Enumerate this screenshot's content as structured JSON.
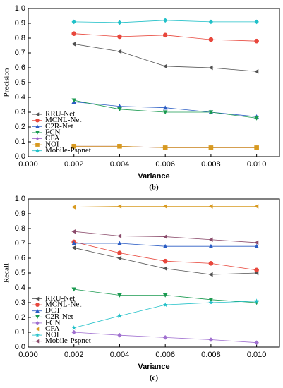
{
  "chart_data": [
    {
      "type": "line",
      "ylabel": "Precision",
      "xlabel": "Variance",
      "caption": "(b)",
      "x": [
        0.002,
        0.004,
        0.006,
        0.008,
        0.01
      ],
      "xlim": [
        0,
        0.011
      ],
      "xticks": [
        {
          "value": 0,
          "label": "0.000"
        },
        {
          "value": 0.002,
          "label": "0.002"
        },
        {
          "value": 0.004,
          "label": "0.004"
        },
        {
          "value": 0.006,
          "label": "0.006"
        },
        {
          "value": 0.008,
          "label": "0.008"
        },
        {
          "value": 0.01,
          "label": "0.010"
        }
      ],
      "ylim": [
        0,
        1
      ],
      "yticks": [
        {
          "value": 0,
          "label": "0.0"
        },
        0.1,
        0.2,
        0.3,
        0.4,
        0.5,
        0.6,
        0.7,
        0.8,
        0.9,
        {
          "value": 1,
          "label": "1.0"
        }
      ],
      "legend": "lower left",
      "series": [
        {
          "name": "RRU-Net",
          "color": "#505050",
          "marker": "tri-left",
          "values": [
            0.76,
            0.71,
            0.61,
            0.6,
            0.575
          ]
        },
        {
          "name": "MCNL-Net",
          "color": "#e8473c",
          "marker": "circle",
          "values": [
            0.83,
            0.81,
            0.82,
            0.79,
            0.78
          ]
        },
        {
          "name": "C2R-Net",
          "color": "#2a5cc4",
          "marker": "tri-up",
          "values": [
            0.37,
            0.34,
            0.33,
            0.3,
            0.27
          ]
        },
        {
          "name": "FCN",
          "color": "#1a9a50",
          "marker": "tri-down",
          "values": [
            0.38,
            0.32,
            0.3,
            0.3,
            0.26
          ]
        },
        {
          "name": "CFA",
          "color": "#9a60c8",
          "marker": "star",
          "values": [
            0.07,
            0.07,
            0.06,
            0.06,
            0.06
          ]
        },
        {
          "name": "NOI",
          "color": "#d89a20",
          "marker": "square",
          "values": [
            0.07,
            0.07,
            0.06,
            0.06,
            0.06
          ]
        },
        {
          "name": "Mobile-Pspnet",
          "color": "#20c0c8",
          "marker": "diamond",
          "values": [
            0.91,
            0.905,
            0.92,
            0.91,
            0.91
          ]
        }
      ]
    },
    {
      "type": "line",
      "ylabel": "Recall",
      "xlabel": "Variance",
      "caption": "(c)",
      "x": [
        0.002,
        0.004,
        0.006,
        0.008,
        0.01
      ],
      "xlim": [
        0,
        0.011
      ],
      "xticks": [
        {
          "value": 0,
          "label": "0.000"
        },
        {
          "value": 0.002,
          "label": "0.002"
        },
        {
          "value": 0.004,
          "label": "0.004"
        },
        {
          "value": 0.006,
          "label": "0.006"
        },
        {
          "value": 0.008,
          "label": "0.008"
        },
        {
          "value": 0.01,
          "label": "0.010"
        }
      ],
      "ylim": [
        0,
        1
      ],
      "yticks": [
        {
          "value": 0,
          "label": "0.0"
        },
        0.1,
        0.2,
        0.3,
        0.4,
        0.5,
        0.6,
        0.7,
        0.8,
        0.9,
        {
          "value": 1,
          "label": "1.0"
        }
      ],
      "legend": "lower left",
      "series": [
        {
          "name": "RRU-Net",
          "color": "#505050",
          "marker": "tri-left",
          "values": [
            0.67,
            0.6,
            0.53,
            0.49,
            0.5
          ]
        },
        {
          "name": "MCNL-Net",
          "color": "#e8473c",
          "marker": "circle",
          "values": [
            0.71,
            0.635,
            0.58,
            0.565,
            0.52
          ]
        },
        {
          "name": "DCT",
          "color": "#2a5cc4",
          "marker": "tri-up",
          "values": [
            0.7,
            0.7,
            0.68,
            0.68,
            0.68
          ]
        },
        {
          "name": "C2R-Net",
          "color": "#1a9a50",
          "marker": "tri-down",
          "values": [
            0.39,
            0.35,
            0.35,
            0.32,
            0.3
          ]
        },
        {
          "name": "FCN",
          "color": "#a070d0",
          "marker": "diamond",
          "values": [
            0.1,
            0.08,
            0.065,
            0.05,
            0.03
          ]
        },
        {
          "name": "CFA",
          "color": "#d89a20",
          "marker": "tri-left",
          "values": [
            0.945,
            0.95,
            0.95,
            0.95,
            0.95
          ]
        },
        {
          "name": "NOI",
          "color": "#20c0c8",
          "marker": "star",
          "values": [
            0.13,
            0.21,
            0.285,
            0.3,
            0.31
          ]
        },
        {
          "name": "Mobile-Pspnet",
          "color": "#8a4a6a",
          "marker": "tri-left",
          "values": [
            0.78,
            0.75,
            0.745,
            0.725,
            0.705
          ]
        }
      ]
    }
  ]
}
